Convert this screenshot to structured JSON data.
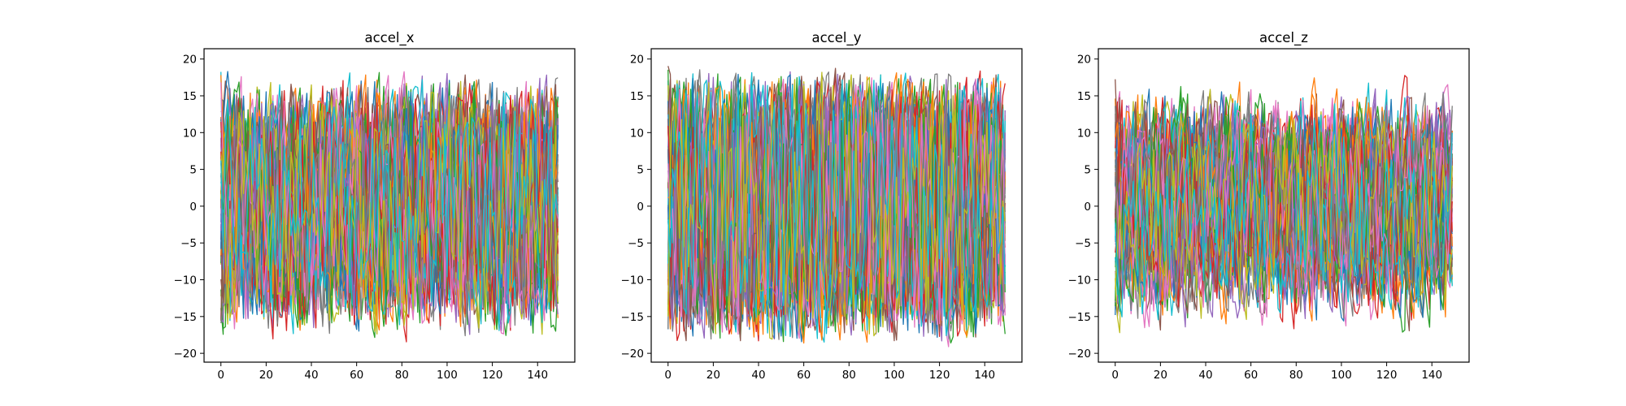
{
  "chart_data": [
    {
      "type": "line",
      "title": "accel_x",
      "xlabel": "",
      "ylabel": "",
      "xlim": [
        -7.45,
        156.45
      ],
      "ylim": [
        -21.2,
        21.4
      ],
      "xticks": [
        0,
        20,
        40,
        60,
        80,
        100,
        120,
        140
      ],
      "yticks": [
        -20,
        -15,
        -10,
        -5,
        0,
        5,
        10,
        15,
        20
      ],
      "series_count": 60,
      "x_count": 150,
      "y_range": [
        -19.6,
        19.6
      ],
      "seed": 11,
      "smoothness": 0.3
    },
    {
      "type": "line",
      "title": "accel_y",
      "xlabel": "",
      "ylabel": "",
      "xlim": [
        -7.45,
        156.45
      ],
      "ylim": [
        -21.2,
        21.4
      ],
      "xticks": [
        0,
        20,
        40,
        60,
        80,
        100,
        120,
        140
      ],
      "yticks": [
        -20,
        -15,
        -10,
        -5,
        0,
        5,
        10,
        15,
        20
      ],
      "series_count": 60,
      "x_count": 150,
      "y_range": [
        -19.6,
        19.6
      ],
      "seed": 23,
      "smoothness": 0.2
    },
    {
      "type": "line",
      "title": "accel_z",
      "xlabel": "",
      "ylabel": "",
      "xlim": [
        -7.45,
        156.45
      ],
      "ylim": [
        -21.2,
        21.4
      ],
      "xticks": [
        0,
        20,
        40,
        60,
        80,
        100,
        120,
        140
      ],
      "yticks": [
        -20,
        -15,
        -10,
        -5,
        0,
        5,
        10,
        15,
        20
      ],
      "series_count": 60,
      "x_count": 150,
      "y_range": [
        -19.6,
        19.6
      ],
      "seed": 37,
      "smoothness": 0.45
    }
  ],
  "palette": [
    "#1f77b4",
    "#ff7f0e",
    "#2ca02c",
    "#d62728",
    "#9467bd",
    "#8c564b",
    "#e377c2",
    "#7f7f7f",
    "#bcbd22",
    "#17becf"
  ]
}
